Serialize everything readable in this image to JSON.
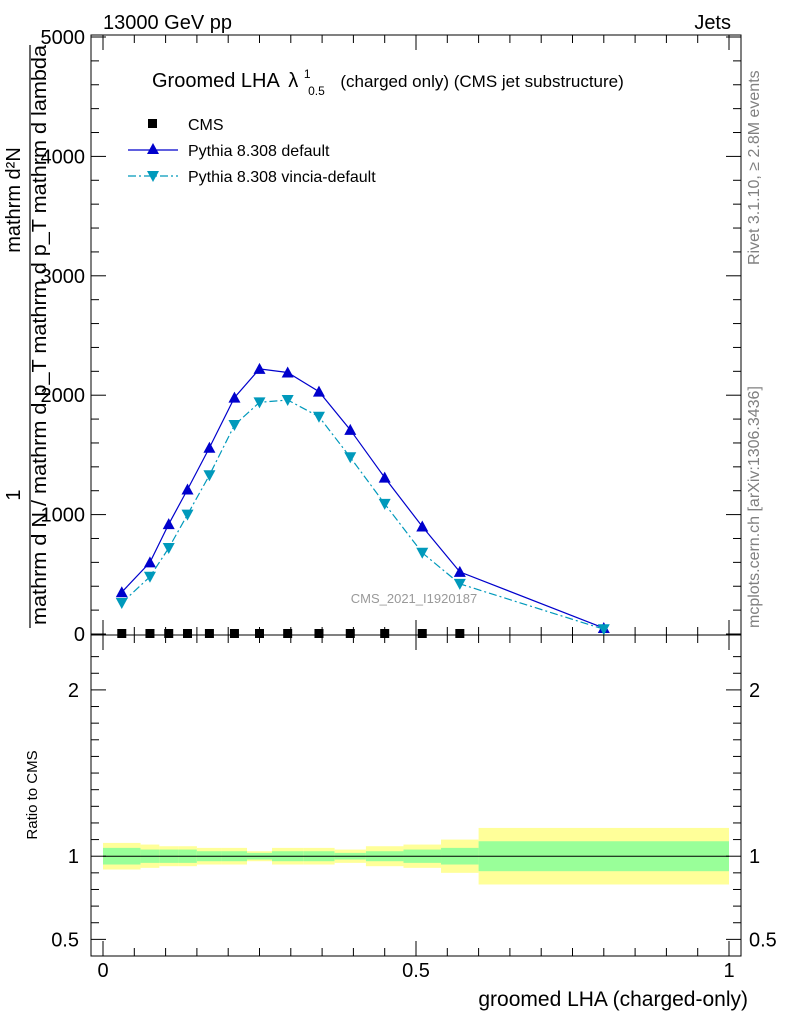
{
  "header": {
    "energy": "13000 GeV pp",
    "category": "Jets"
  },
  "side_labels": {
    "rivet": "Rivet 3.1.10, ≥ 2.8M events",
    "mcplots": "mcplots.cern.ch [arXiv:1306.3436]"
  },
  "chart_data": [
    {
      "type": "line",
      "title_main": "Groomed LHA",
      "title_sym": "λ",
      "title_sup": "1",
      "title_sub": "0.5",
      "title_rest": "(charged only) (CMS jet substructure)",
      "ylabel_num": "1",
      "ylabel_den": "mathrm d N / mathrm d p_T mathrm d p_T mathrm d lambda",
      "ylabel_numer": "mathrm d²N",
      "ylim": [
        0,
        5000
      ],
      "xlim": [
        0,
        1
      ],
      "y_ticks": [
        "0",
        "1000",
        "2000",
        "3000",
        "4000",
        "5000"
      ],
      "y_tick_values": [
        0,
        1000,
        2000,
        3000,
        4000,
        5000
      ],
      "watermark": "CMS_2021_I1920187",
      "legend_position": "top-left",
      "series": [
        {
          "name": "CMS",
          "color": "#000000",
          "marker": "square",
          "x": [
            0.03,
            0.075,
            0.105,
            0.135,
            0.17,
            0.21,
            0.25,
            0.295,
            0.345,
            0.395,
            0.45,
            0.51,
            0.57
          ],
          "y": [
            0,
            0,
            0,
            0,
            0,
            0,
            0,
            0,
            0,
            0,
            0,
            0,
            0
          ]
        },
        {
          "name": "Pythia 8.308 default",
          "color": "#0000cc",
          "marker": "triangle-up",
          "line": "solid",
          "x": [
            0.03,
            0.075,
            0.105,
            0.135,
            0.17,
            0.21,
            0.25,
            0.295,
            0.345,
            0.395,
            0.45,
            0.51,
            0.57,
            0.8
          ],
          "y": [
            350,
            600,
            920,
            1210,
            1560,
            1980,
            2220,
            2190,
            2030,
            1710,
            1310,
            900,
            520,
            50
          ]
        },
        {
          "name": "Pythia 8.308 vincia-default",
          "color": "#0099bb",
          "marker": "triangle-down",
          "line": "dashdot",
          "x": [
            0.03,
            0.075,
            0.105,
            0.135,
            0.17,
            0.21,
            0.25,
            0.295,
            0.345,
            0.395,
            0.45,
            0.51,
            0.57,
            0.8
          ],
          "y": [
            260,
            480,
            720,
            1000,
            1330,
            1750,
            1940,
            1960,
            1820,
            1480,
            1090,
            680,
            420,
            40
          ]
        }
      ]
    },
    {
      "type": "area",
      "ylabel": "Ratio to CMS",
      "xlabel": "groomed LHA (charged-only)",
      "xlim": [
        0,
        1
      ],
      "ylim": [
        0.4,
        2.3
      ],
      "y_ticks": [
        "0.5",
        "1",
        "2"
      ],
      "y_tick_values": [
        0.5,
        1,
        2
      ],
      "x_ticks": [
        "0",
        "0.5",
        "1"
      ],
      "x_tick_values": [
        0,
        0.5,
        1
      ],
      "band_colors": {
        "inner": "#99ff99",
        "outer": "#ffff99"
      },
      "bins": [
        {
          "lo": 0.0,
          "hi": 0.06,
          "inner": [
            0.95,
            1.05
          ],
          "outer": [
            0.92,
            1.08
          ]
        },
        {
          "lo": 0.06,
          "hi": 0.09,
          "inner": [
            0.96,
            1.04
          ],
          "outer": [
            0.93,
            1.07
          ]
        },
        {
          "lo": 0.09,
          "hi": 0.12,
          "inner": [
            0.96,
            1.04
          ],
          "outer": [
            0.94,
            1.06
          ]
        },
        {
          "lo": 0.12,
          "hi": 0.15,
          "inner": [
            0.96,
            1.04
          ],
          "outer": [
            0.94,
            1.06
          ]
        },
        {
          "lo": 0.15,
          "hi": 0.19,
          "inner": [
            0.97,
            1.03
          ],
          "outer": [
            0.95,
            1.05
          ]
        },
        {
          "lo": 0.19,
          "hi": 0.23,
          "inner": [
            0.97,
            1.03
          ],
          "outer": [
            0.95,
            1.05
          ]
        },
        {
          "lo": 0.23,
          "hi": 0.27,
          "inner": [
            0.98,
            1.02
          ],
          "outer": [
            0.97,
            1.03
          ]
        },
        {
          "lo": 0.27,
          "hi": 0.32,
          "inner": [
            0.97,
            1.03
          ],
          "outer": [
            0.95,
            1.05
          ]
        },
        {
          "lo": 0.32,
          "hi": 0.37,
          "inner": [
            0.97,
            1.03
          ],
          "outer": [
            0.95,
            1.05
          ]
        },
        {
          "lo": 0.37,
          "hi": 0.42,
          "inner": [
            0.98,
            1.02
          ],
          "outer": [
            0.96,
            1.04
          ]
        },
        {
          "lo": 0.42,
          "hi": 0.48,
          "inner": [
            0.97,
            1.03
          ],
          "outer": [
            0.94,
            1.06
          ]
        },
        {
          "lo": 0.48,
          "hi": 0.54,
          "inner": [
            0.96,
            1.04
          ],
          "outer": [
            0.93,
            1.07
          ]
        },
        {
          "lo": 0.54,
          "hi": 0.6,
          "inner": [
            0.95,
            1.05
          ],
          "outer": [
            0.9,
            1.1
          ]
        },
        {
          "lo": 0.6,
          "hi": 1.0,
          "inner": [
            0.91,
            1.09
          ],
          "outer": [
            0.83,
            1.17
          ]
        }
      ]
    }
  ]
}
